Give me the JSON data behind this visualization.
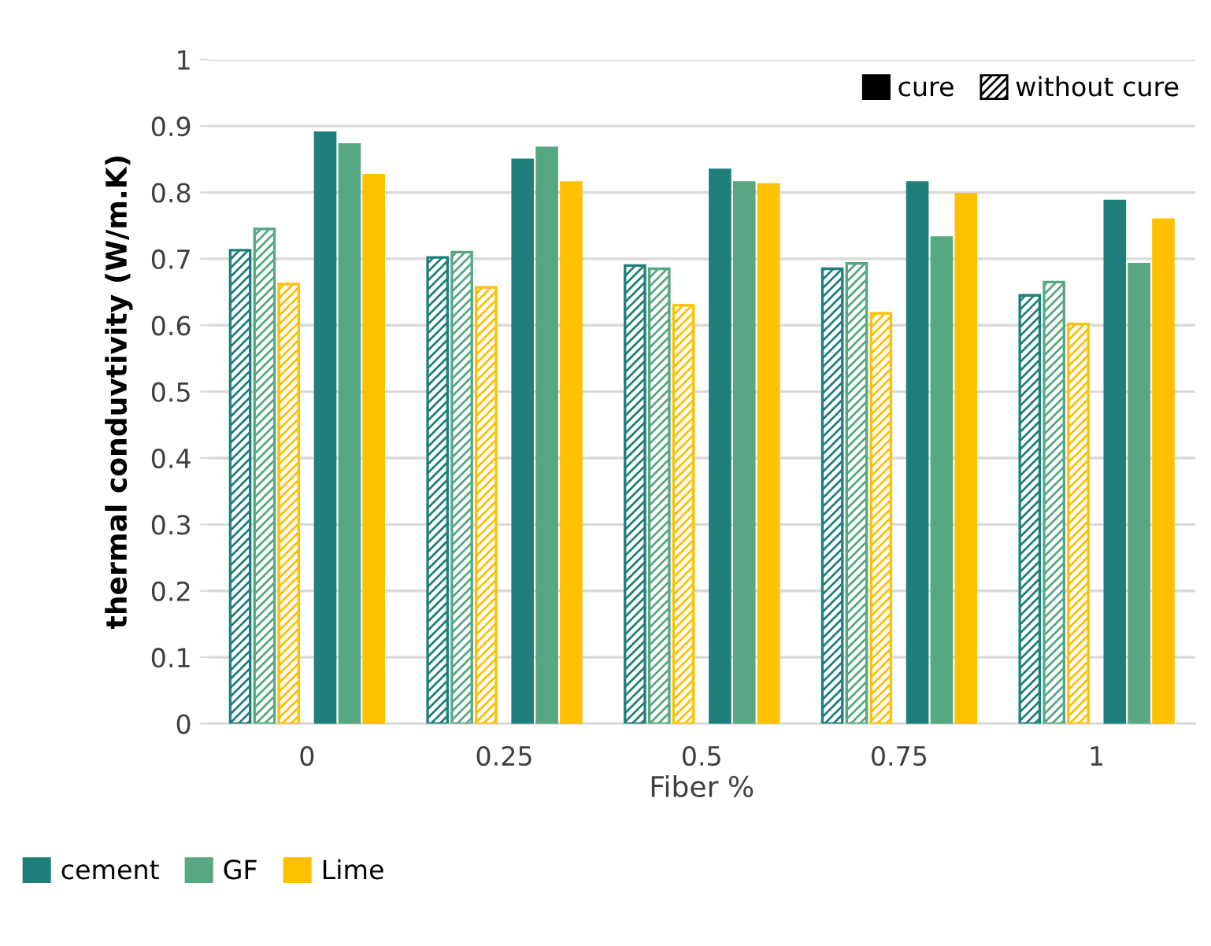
{
  "chart_data": {
    "type": "bar",
    "xlabel": "Fiber %",
    "ylabel": "thermal conduvtivity (W/m.K)",
    "categories": [
      "0",
      "0.25",
      "0.5",
      "0.75",
      "1"
    ],
    "series": [
      {
        "color": "#1f7f7a",
        "values": [
          0.713,
          0.702,
          0.69,
          0.685,
          0.645
        ]
      },
      {
        "color": "#57a882",
        "values": [
          0.745,
          0.71,
          0.685,
          0.693,
          0.665
        ]
      },
      {
        "color": "#ffc000",
        "values": [
          0.662,
          0.657,
          0.63,
          0.618,
          0.602
        ]
      },
      {
        "name": "cement",
        "color": "#1f7f7a",
        "values": [
          0.89,
          0.849,
          0.834,
          0.815,
          0.787
        ]
      },
      {
        "name": "GF",
        "color": "#57a882",
        "values": [
          0.872,
          0.867,
          0.815,
          0.732,
          0.692
        ]
      },
      {
        "name": "Lime",
        "color": "#ffc000",
        "values": [
          0.826,
          0.815,
          0.812,
          0.797,
          0.759
        ]
      }
    ],
    "annotations": [
      "cure",
      "without cure"
    ],
    "ylim": [
      0,
      1
    ],
    "yticks": [
      0,
      0.1,
      0.2,
      0.3,
      0.4,
      0.5,
      0.6,
      0.7,
      0.8,
      0.9,
      1
    ],
    "grid": "y",
    "legend": "bottom left"
  }
}
